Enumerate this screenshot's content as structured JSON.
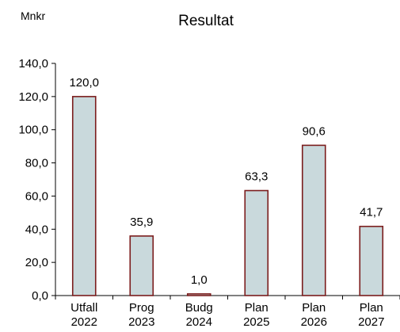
{
  "chart_data": {
    "type": "bar",
    "title": "Resultat",
    "unit_label": "Mnkr",
    "ylim": [
      0,
      140
    ],
    "yticks": [
      "0,0",
      "20,0",
      "40,0",
      "60,0",
      "80,0",
      "100,0",
      "120,0",
      "140,0"
    ],
    "categories": [
      [
        "Utfall",
        "2022"
      ],
      [
        "Prog",
        "2023"
      ],
      [
        "Budg",
        "2024"
      ],
      [
        "Plan",
        "2025"
      ],
      [
        "Plan",
        "2026"
      ],
      [
        "Plan",
        "2027"
      ]
    ],
    "values": [
      120.0,
      35.9,
      1.0,
      63.3,
      90.6,
      41.7
    ],
    "value_labels": [
      "120,0",
      "35,9",
      "1,0",
      "63,3",
      "90,6",
      "41,7"
    ],
    "bar_fill": "#c9d9dc",
    "bar_stroke": "#7b1d1d",
    "grid": false,
    "legend": false
  }
}
